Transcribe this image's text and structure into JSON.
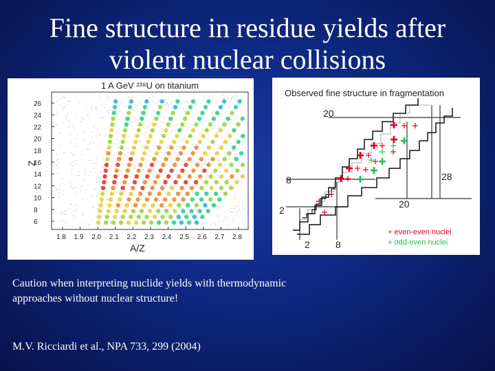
{
  "title": {
    "line1": "Fine structure in residue yields after",
    "line2": "violent nuclear collisions"
  },
  "left_chart": {
    "title": "1 A GeV ²³⁸U on titanium",
    "xlabel": "A/Z",
    "ylabel": "Z",
    "x_ticks": [
      "1.8",
      "1.9",
      "2.0",
      "2.1",
      "2.2",
      "2.3",
      "2.4",
      "2.5",
      "2.6",
      "2.7",
      "2.8"
    ],
    "y_ticks": [
      "6",
      "8",
      "10",
      "12",
      "14",
      "16",
      "18",
      "20",
      "22",
      "24",
      "26"
    ]
  },
  "right_chart": {
    "title": "Observed fine structure in fragmentation",
    "label_20_top": "20",
    "label_8_left": "8",
    "label_2_left": "2",
    "label_28_right": "28",
    "label_20_bottom": "20",
    "label_2_bottom": "2",
    "label_8_bottom": "8",
    "legend_even": "+ even-even nuclei",
    "legend_odd": "+ odd-even nuclei",
    "color_even": "#e0001a",
    "color_odd": "#22c04a"
  },
  "caption": {
    "line1": "Caution when interpreting nuclide yields with thermodynamic",
    "line2": "approaches without nuclear structure!"
  },
  "reference": "M.V. Ricciardi et al., NPA 733, 299 (2004)"
}
